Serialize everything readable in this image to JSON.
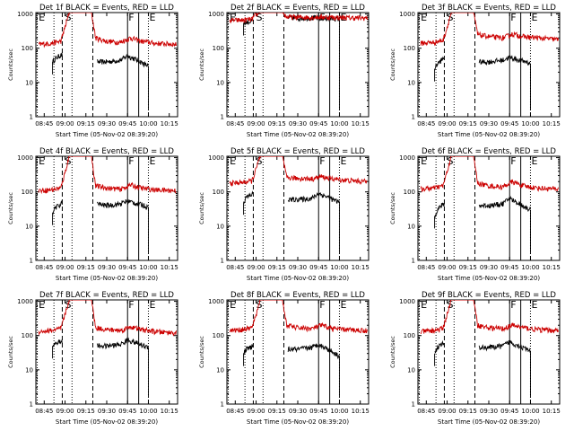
{
  "chart_data": [
    {
      "type": "line",
      "title": "Det 1f BLACK = Events, RED = LLD",
      "ylabel": "Counts/sec",
      "xlabel": "Start Time (05-Nov-02 08:39:20)",
      "x_ticks": [
        "08:45",
        "09:00",
        "09:15",
        "09:30",
        "09:45",
        "10:00",
        "10:15"
      ],
      "y_ticks": [
        "1",
        "10",
        "100",
        "1000"
      ],
      "ylim": [
        1,
        1100
      ],
      "y_scale": "log",
      "markers": {
        "S": "09:00",
        "F": "09:45",
        "E": "10:00"
      },
      "series": [
        {
          "name": "Events",
          "color": "#000000",
          "x": [
            "08:51",
            "08:53",
            "08:56",
            "08:58",
            "09:23",
            "09:30",
            "09:40",
            "09:45",
            "09:52",
            "09:57",
            "10:00"
          ],
          "values": [
            40,
            50,
            60,
            65,
            40,
            40,
            45,
            60,
            45,
            35,
            30
          ]
        },
        {
          "name": "LLD",
          "color": "#cc0000",
          "x": [
            "08:41",
            "08:50",
            "08:57",
            "08:59",
            "09:03",
            "09:19",
            "09:22",
            "09:30",
            "09:40",
            "09:47",
            "09:55",
            "10:05",
            "10:20"
          ],
          "values": [
            130,
            140,
            160,
            300,
            1100,
            1100,
            200,
            160,
            150,
            200,
            160,
            140,
            130
          ]
        }
      ]
    },
    {
      "type": "line",
      "title": "Det 2f BLACK = Events, RED = LLD",
      "ylabel": "Counts/sec",
      "xlabel": "Start Time (05-Nov-02 08:39:20)",
      "x_ticks": [
        "08:45",
        "09:00",
        "09:15",
        "09:30",
        "09:45",
        "10:00",
        "10:15"
      ],
      "y_ticks": [
        "1",
        "10",
        "100",
        "1000"
      ],
      "ylim": [
        1,
        1100
      ],
      "y_scale": "log",
      "markers": {
        "S": "09:00",
        "F": "09:45",
        "E": "10:00"
      },
      "series": [
        {
          "name": "Events",
          "color": "#000000",
          "x": [
            "08:51",
            "08:56",
            "08:58",
            "09:23",
            "09:30",
            "09:40",
            "09:45",
            "09:52",
            "10:00"
          ],
          "values": [
            550,
            600,
            650,
            800,
            750,
            780,
            750,
            740,
            720
          ]
        },
        {
          "name": "LLD",
          "color": "#cc0000",
          "x": [
            "08:41",
            "08:50",
            "08:57",
            "08:59",
            "09:03",
            "09:19",
            "09:22",
            "09:30",
            "09:40",
            "09:47",
            "09:55",
            "10:05",
            "10:20"
          ],
          "values": [
            650,
            660,
            700,
            900,
            1100,
            1100,
            820,
            800,
            800,
            820,
            800,
            780,
            760
          ]
        }
      ]
    },
    {
      "type": "line",
      "title": "Det 3f BLACK = Events, RED = LLD",
      "ylabel": "Counts/sec",
      "xlabel": "Start Time (05-Nov-02 08:39:20)",
      "x_ticks": [
        "08:45",
        "09:00",
        "09:15",
        "09:30",
        "09:45",
        "10:00",
        "10:15"
      ],
      "y_ticks": [
        "1",
        "10",
        "100",
        "1000"
      ],
      "ylim": [
        1,
        1100
      ],
      "y_scale": "log",
      "markers": {
        "S": "09:00",
        "F": "09:45",
        "E": "10:00"
      },
      "series": [
        {
          "name": "Events",
          "color": "#000000",
          "x": [
            "08:51",
            "08:53",
            "08:56",
            "08:58",
            "09:23",
            "09:30",
            "09:40",
            "09:45",
            "09:52",
            "09:57",
            "10:00"
          ],
          "values": [
            25,
            35,
            45,
            55,
            40,
            40,
            45,
            55,
            45,
            40,
            35
          ]
        },
        {
          "name": "LLD",
          "color": "#cc0000",
          "x": [
            "08:41",
            "08:50",
            "08:57",
            "08:59",
            "09:03",
            "09:19",
            "09:22",
            "09:30",
            "09:40",
            "09:47",
            "09:55",
            "10:05",
            "10:20"
          ],
          "values": [
            140,
            150,
            170,
            300,
            1100,
            1100,
            250,
            220,
            200,
            260,
            220,
            200,
            180
          ]
        }
      ]
    },
    {
      "type": "line",
      "title": "Det 4f BLACK = Events, RED = LLD",
      "ylabel": "Counts/sec",
      "xlabel": "Start Time (05-Nov-02 08:39:20)",
      "x_ticks": [
        "08:45",
        "09:00",
        "09:15",
        "09:30",
        "09:45",
        "10:00",
        "10:15"
      ],
      "y_ticks": [
        "1",
        "10",
        "100",
        "1000"
      ],
      "ylim": [
        1,
        1100
      ],
      "y_scale": "log",
      "markers": {
        "S": "09:00",
        "F": "09:45",
        "E": "10:00"
      },
      "series": [
        {
          "name": "Events",
          "color": "#000000",
          "x": [
            "08:51",
            "08:53",
            "08:56",
            "08:58",
            "09:23",
            "09:30",
            "09:40",
            "09:45",
            "09:52",
            "09:57",
            "10:00"
          ],
          "values": [
            25,
            35,
            40,
            50,
            45,
            40,
            45,
            55,
            45,
            40,
            35
          ]
        },
        {
          "name": "LLD",
          "color": "#cc0000",
          "x": [
            "08:41",
            "08:50",
            "08:57",
            "08:59",
            "09:03",
            "09:19",
            "09:22",
            "09:30",
            "09:40",
            "09:47",
            "09:55",
            "10:05",
            "10:20"
          ],
          "values": [
            110,
            115,
            130,
            260,
            1100,
            1100,
            150,
            130,
            120,
            160,
            130,
            115,
            110
          ]
        }
      ]
    },
    {
      "type": "line",
      "title": "Det 5f BLACK = Events, RED = LLD",
      "ylabel": "Counts/sec",
      "xlabel": "Start Time (05-Nov-02 08:39:20)",
      "x_ticks": [
        "08:45",
        "09:00",
        "09:15",
        "09:30",
        "09:45",
        "10:00",
        "10:15"
      ],
      "y_ticks": [
        "1",
        "10",
        "100",
        "1000"
      ],
      "ylim": [
        1,
        1100
      ],
      "y_scale": "log",
      "markers": {
        "S": "09:00",
        "F": "09:45",
        "E": "10:00"
      },
      "series": [
        {
          "name": "Events",
          "color": "#000000",
          "x": [
            "08:51",
            "08:53",
            "08:56",
            "08:58",
            "09:23",
            "09:30",
            "09:40",
            "09:45",
            "09:52",
            "09:57",
            "10:00"
          ],
          "values": [
            50,
            70,
            80,
            90,
            60,
            60,
            65,
            90,
            70,
            55,
            50
          ]
        },
        {
          "name": "LLD",
          "color": "#cc0000",
          "x": [
            "08:41",
            "08:50",
            "08:57",
            "08:59",
            "09:03",
            "09:19",
            "09:22",
            "09:30",
            "09:40",
            "09:47",
            "09:55",
            "10:05",
            "10:20"
          ],
          "values": [
            180,
            190,
            210,
            350,
            1100,
            1100,
            260,
            250,
            240,
            280,
            240,
            220,
            200
          ]
        }
      ]
    },
    {
      "type": "line",
      "title": "Det 6f BLACK = Events, RED = LLD",
      "ylabel": "Counts/sec",
      "xlabel": "Start Time (05-Nov-02 08:39:20)",
      "x_ticks": [
        "08:45",
        "09:00",
        "09:15",
        "09:30",
        "09:45",
        "10:00",
        "10:15"
      ],
      "y_ticks": [
        "1",
        "10",
        "100",
        "1000"
      ],
      "ylim": [
        1,
        1100
      ],
      "y_scale": "log",
      "markers": {
        "S": "09:00",
        "F": "09:45",
        "E": "10:00"
      },
      "series": [
        {
          "name": "Events",
          "color": "#000000",
          "x": [
            "08:51",
            "08:53",
            "08:56",
            "08:58",
            "09:23",
            "09:30",
            "09:40",
            "09:45",
            "09:52",
            "09:57",
            "10:00"
          ],
          "values": [
            20,
            30,
            40,
            45,
            40,
            40,
            45,
            65,
            45,
            35,
            30
          ]
        },
        {
          "name": "LLD",
          "color": "#cc0000",
          "x": [
            "08:41",
            "08:50",
            "08:57",
            "08:59",
            "09:03",
            "09:19",
            "09:22",
            "09:30",
            "09:40",
            "09:47",
            "09:55",
            "10:05",
            "10:20"
          ],
          "values": [
            120,
            130,
            150,
            280,
            1100,
            1100,
            180,
            150,
            140,
            200,
            150,
            130,
            120
          ]
        }
      ]
    },
    {
      "type": "line",
      "title": "Det 7f BLACK = Events, RED = LLD",
      "ylabel": "Counts/sec",
      "xlabel": "Start Time (05-Nov-02 08:39:20)",
      "x_ticks": [
        "08:45",
        "09:00",
        "09:15",
        "09:30",
        "09:45",
        "10:00",
        "10:15"
      ],
      "y_ticks": [
        "1",
        "10",
        "100",
        "1000"
      ],
      "ylim": [
        1,
        1100
      ],
      "y_scale": "log",
      "markers": {
        "S": "09:00",
        "F": "09:45",
        "E": "10:00"
      },
      "series": [
        {
          "name": "Events",
          "color": "#000000",
          "x": [
            "08:51",
            "08:53",
            "08:56",
            "08:58",
            "09:23",
            "09:30",
            "09:40",
            "09:45",
            "09:52",
            "09:57",
            "10:00"
          ],
          "values": [
            50,
            60,
            65,
            70,
            50,
            50,
            55,
            75,
            60,
            50,
            45
          ]
        },
        {
          "name": "LLD",
          "color": "#cc0000",
          "x": [
            "08:41",
            "08:50",
            "08:57",
            "08:59",
            "09:03",
            "09:19",
            "09:22",
            "09:30",
            "09:40",
            "09:47",
            "09:55",
            "10:05",
            "10:20"
          ],
          "values": [
            130,
            140,
            160,
            300,
            1100,
            1100,
            170,
            150,
            140,
            180,
            150,
            130,
            120
          ]
        }
      ]
    },
    {
      "type": "line",
      "title": "Det 8f BLACK = Events, RED = LLD",
      "ylabel": "Counts/sec",
      "xlabel": "Start Time (05-Nov-02 08:39:20)",
      "x_ticks": [
        "08:45",
        "09:00",
        "09:15",
        "09:30",
        "09:45",
        "10:00",
        "10:15"
      ],
      "y_ticks": [
        "1",
        "10",
        "100",
        "1000"
      ],
      "ylim": [
        1,
        1100
      ],
      "y_scale": "log",
      "markers": {
        "S": "09:00",
        "F": "09:45",
        "E": "10:00"
      },
      "series": [
        {
          "name": "Events",
          "color": "#000000",
          "x": [
            "08:51",
            "08:53",
            "08:56",
            "08:58",
            "09:23",
            "09:30",
            "09:40",
            "09:45",
            "09:52",
            "09:57",
            "10:00"
          ],
          "values": [
            30,
            40,
            45,
            50,
            40,
            40,
            45,
            55,
            40,
            30,
            25
          ]
        },
        {
          "name": "LLD",
          "color": "#cc0000",
          "x": [
            "08:41",
            "08:50",
            "08:57",
            "08:59",
            "09:03",
            "09:19",
            "09:22",
            "09:30",
            "09:40",
            "09:47",
            "09:55",
            "10:05",
            "10:20"
          ],
          "values": [
            140,
            150,
            170,
            300,
            1100,
            1100,
            200,
            170,
            160,
            200,
            160,
            150,
            140
          ]
        }
      ]
    },
    {
      "type": "line",
      "title": "Det 9f BLACK = Events, RED = LLD",
      "ylabel": "Counts/sec",
      "xlabel": "Start Time (05-Nov-02 08:39:20)",
      "x_ticks": [
        "08:45",
        "09:00",
        "09:15",
        "09:30",
        "09:45",
        "10:00",
        "10:15"
      ],
      "y_ticks": [
        "1",
        "10",
        "100",
        "1000"
      ],
      "ylim": [
        1,
        1100
      ],
      "y_scale": "log",
      "markers": {
        "S": "09:00",
        "F": "09:45",
        "E": "10:00"
      },
      "series": [
        {
          "name": "Events",
          "color": "#000000",
          "x": [
            "08:51",
            "08:53",
            "08:56",
            "08:58",
            "09:23",
            "09:30",
            "09:40",
            "09:45",
            "09:52",
            "09:57",
            "10:00"
          ],
          "values": [
            30,
            45,
            55,
            60,
            45,
            45,
            50,
            65,
            50,
            40,
            35
          ]
        },
        {
          "name": "LLD",
          "color": "#cc0000",
          "x": [
            "08:41",
            "08:50",
            "08:57",
            "08:59",
            "09:03",
            "09:19",
            "09:22",
            "09:30",
            "09:40",
            "09:47",
            "09:55",
            "10:05",
            "10:20"
          ],
          "values": [
            130,
            140,
            160,
            300,
            1100,
            1100,
            200,
            170,
            160,
            200,
            170,
            150,
            140
          ]
        }
      ]
    }
  ]
}
